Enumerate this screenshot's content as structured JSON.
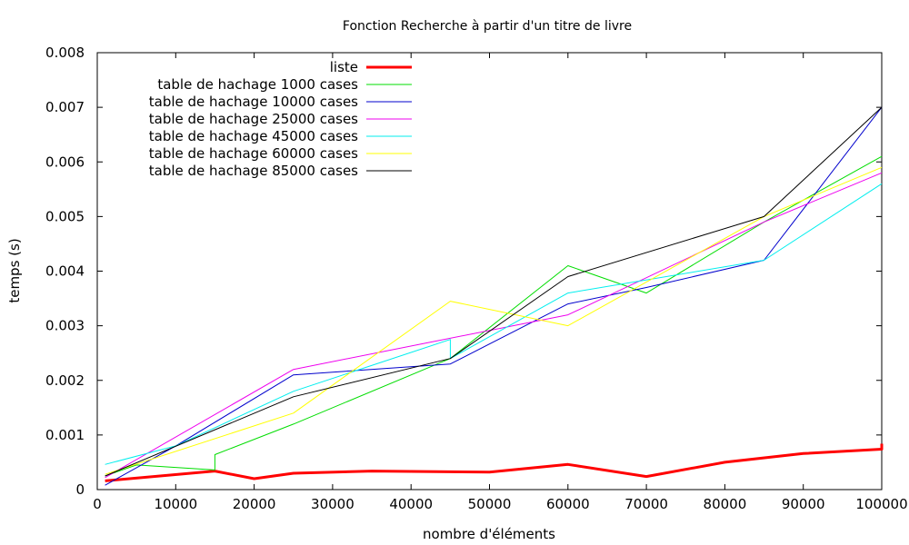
{
  "chart_data": {
    "type": "line",
    "title": "Fonction Recherche à partir d'un titre de livre",
    "xlabel": "nombre d'éléments",
    "ylabel": "temps (s)",
    "xlim": [
      0,
      100000
    ],
    "ylim": [
      0,
      0.008
    ],
    "xticks": [
      0,
      10000,
      20000,
      30000,
      40000,
      50000,
      60000,
      70000,
      80000,
      90000,
      100000
    ],
    "xtick_labels": [
      "0",
      "10000",
      "20000",
      "30000",
      "40000",
      "50000",
      "60000",
      "70000",
      "80000",
      "90000",
      "100000"
    ],
    "yticks": [
      0,
      0.001,
      0.002,
      0.003,
      0.004,
      0.005,
      0.006,
      0.007,
      0.008
    ],
    "ytick_labels": [
      "0",
      "0.001",
      "0.002",
      "0.003",
      "0.004",
      "0.005",
      "0.006",
      "0.007",
      "0.008"
    ],
    "grid": false,
    "legend": "top-left",
    "series": [
      {
        "name": "liste",
        "color": "#ff0000",
        "width": 3,
        "points": [
          [
            1000,
            0.00016
          ],
          [
            15000,
            0.00034
          ],
          [
            20000,
            0.0002
          ],
          [
            25000,
            0.0003
          ],
          [
            35000,
            0.00034
          ],
          [
            50000,
            0.00032
          ],
          [
            60000,
            0.00046
          ],
          [
            70000,
            0.00024
          ],
          [
            80000,
            0.0005
          ],
          [
            90000,
            0.00066
          ],
          [
            100000,
            0.00074
          ],
          [
            100000,
            0.00084
          ]
        ]
      },
      {
        "name": "table de hachage 1000 cases",
        "color": "#00dd00",
        "width": 1,
        "points": [
          [
            1000,
            0.00025
          ],
          [
            5000,
            0.00045
          ],
          [
            15000,
            0.00036
          ],
          [
            15000,
            0.00064
          ],
          [
            25000,
            0.0012
          ],
          [
            45000,
            0.0024
          ],
          [
            60000,
            0.0041
          ],
          [
            70000,
            0.0036
          ],
          [
            85000,
            0.0049
          ],
          [
            100000,
            0.0061
          ]
        ]
      },
      {
        "name": "table de hachage 10000 cases",
        "color": "#0000cc",
        "width": 1,
        "points": [
          [
            1000,
            8e-05
          ],
          [
            10000,
            0.0008
          ],
          [
            25000,
            0.0021
          ],
          [
            45000,
            0.0023
          ],
          [
            60000,
            0.0034
          ],
          [
            70000,
            0.0037
          ],
          [
            85000,
            0.0042
          ],
          [
            100000,
            0.007
          ]
        ]
      },
      {
        "name": "table de hachage 25000 cases",
        "color": "#ee00ee",
        "width": 1,
        "points": [
          [
            1000,
            0.00022
          ],
          [
            25000,
            0.0022
          ],
          [
            60000,
            0.0032
          ],
          [
            85000,
            0.0049
          ],
          [
            100000,
            0.0058
          ]
        ]
      },
      {
        "name": "table de hachage 45000 cases",
        "color": "#00eeee",
        "width": 1,
        "points": [
          [
            1000,
            0.00046
          ],
          [
            10000,
            0.0008
          ],
          [
            25000,
            0.0018
          ],
          [
            45000,
            0.00275
          ],
          [
            45000,
            0.0024
          ],
          [
            60000,
            0.0036
          ],
          [
            85000,
            0.0042
          ],
          [
            100000,
            0.0056
          ]
        ]
      },
      {
        "name": "table de hachage 60000 cases",
        "color": "#ffff00",
        "width": 1,
        "points": [
          [
            1000,
            0.00028
          ],
          [
            25000,
            0.0014
          ],
          [
            45000,
            0.00345
          ],
          [
            60000,
            0.003
          ],
          [
            85000,
            0.005
          ],
          [
            100000,
            0.0059
          ]
        ]
      },
      {
        "name": "table de hachage 85000 cases",
        "color": "#000000",
        "width": 1,
        "points": [
          [
            1000,
            0.00025
          ],
          [
            25000,
            0.0017
          ],
          [
            45000,
            0.0024
          ],
          [
            60000,
            0.0039
          ],
          [
            85000,
            0.005
          ],
          [
            100000,
            0.007
          ]
        ]
      }
    ]
  }
}
